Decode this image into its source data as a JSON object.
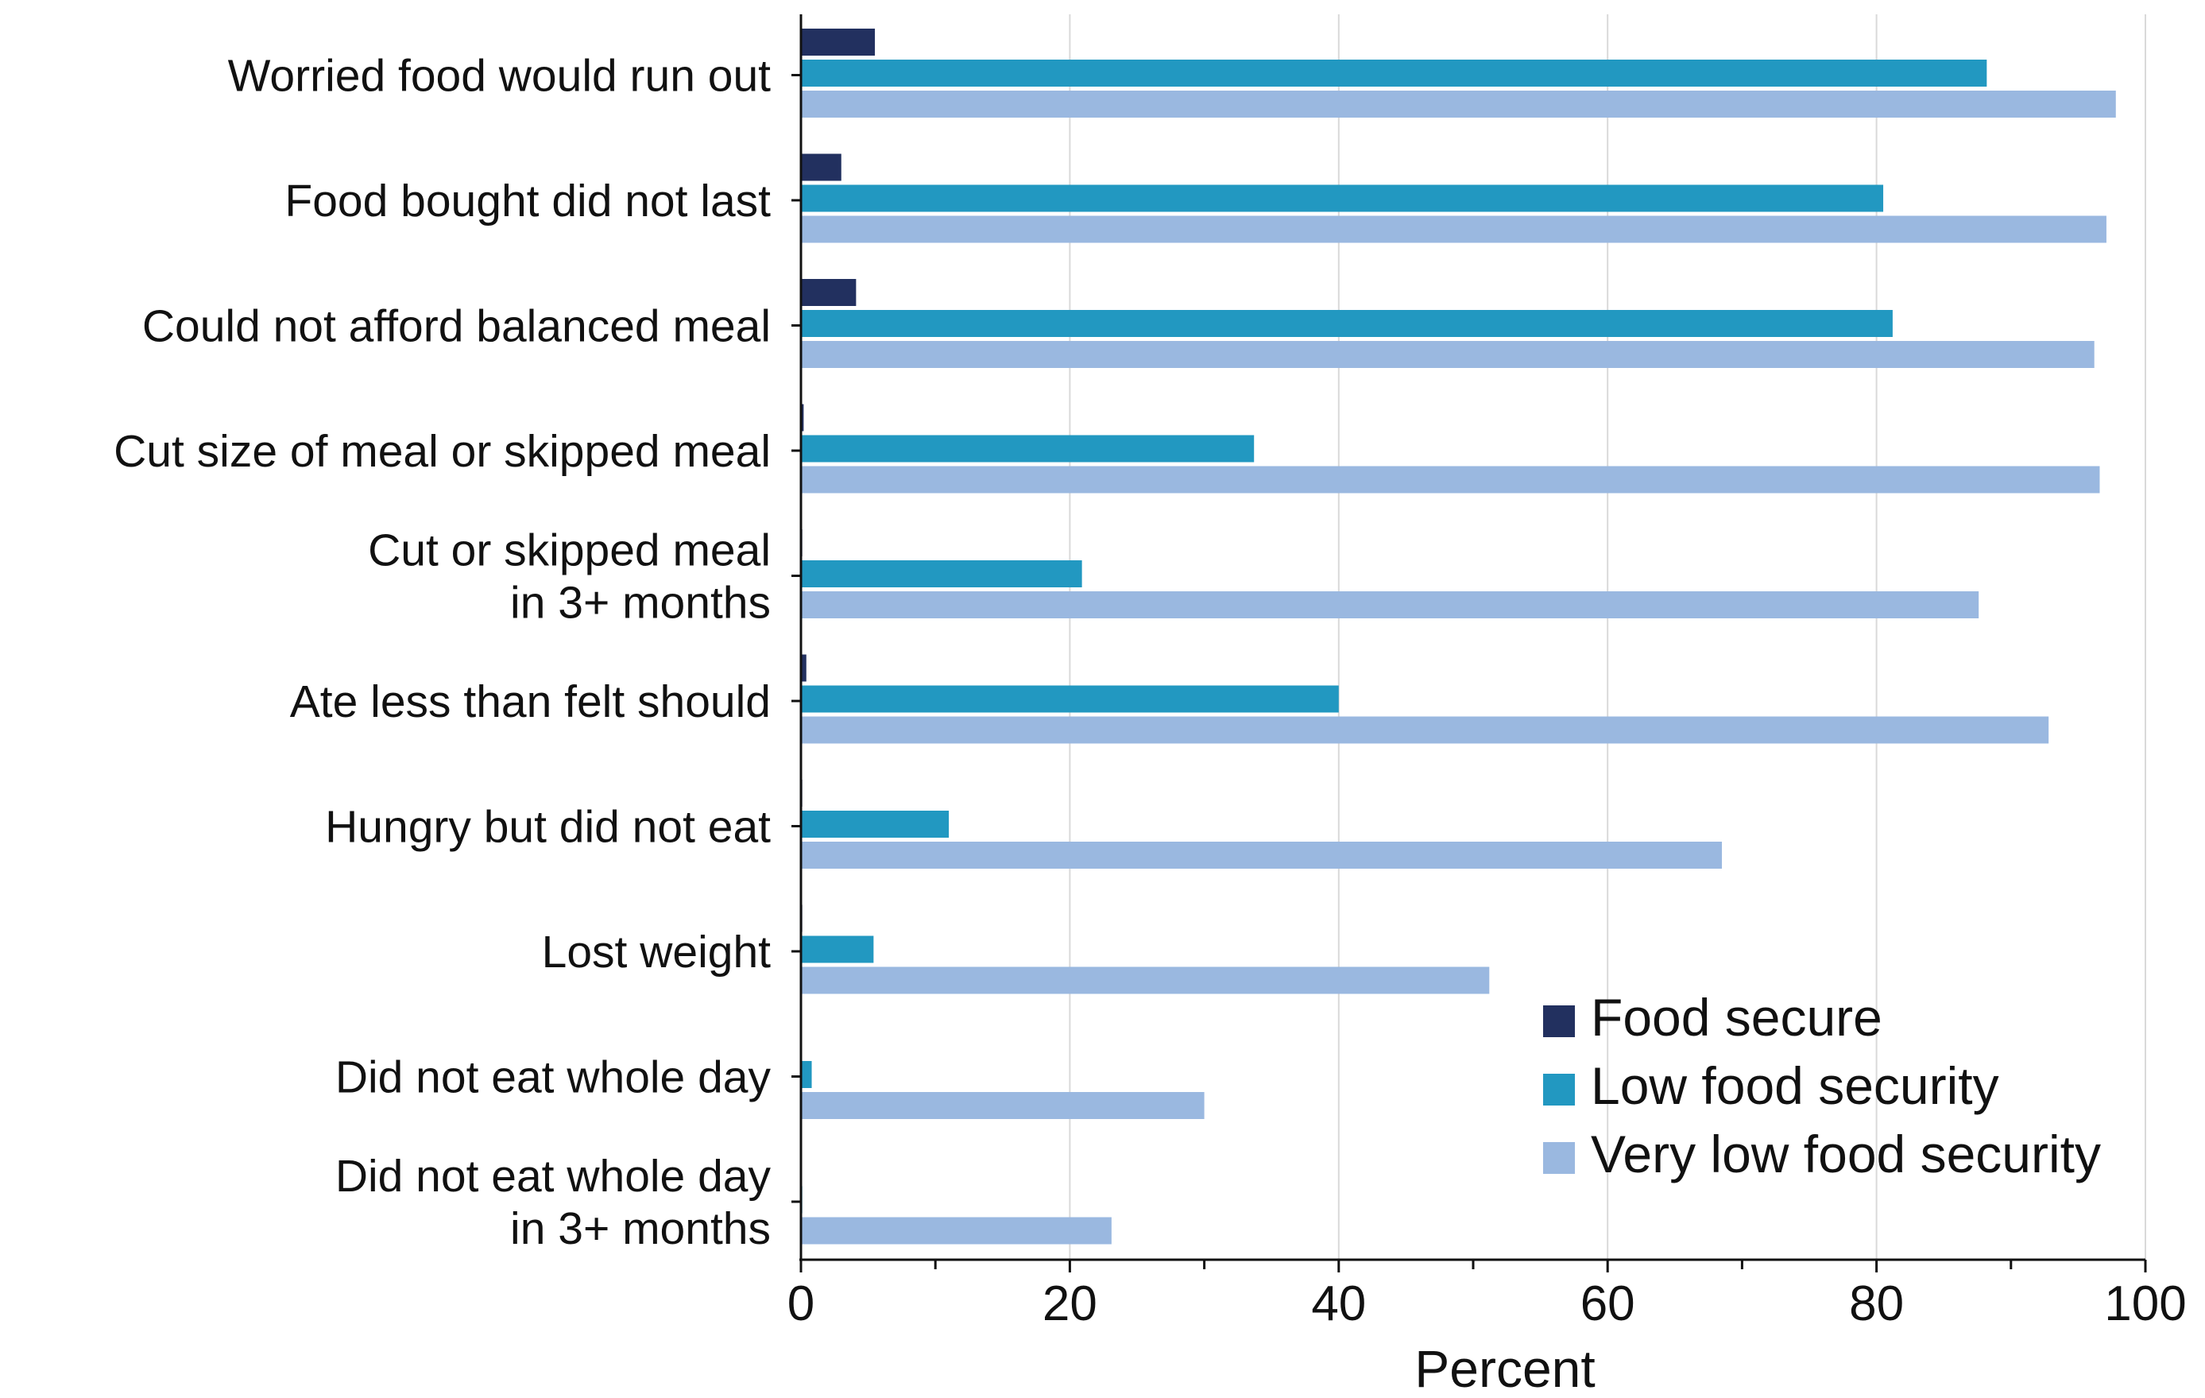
{
  "chart_data": {
    "type": "bar",
    "orientation": "horizontal",
    "categories": [
      [
        "Worried food would run out"
      ],
      [
        "Food bought did not last"
      ],
      [
        "Could not afford balanced meal"
      ],
      [
        "Cut size of meal or skipped meal"
      ],
      [
        "Cut or skipped meal",
        "in 3+ months"
      ],
      [
        "Ate less than felt should"
      ],
      [
        "Hungry but did not eat"
      ],
      [
        "Lost weight"
      ],
      [
        "Did not eat whole day"
      ],
      [
        "Did not eat whole day",
        "in 3+ months"
      ]
    ],
    "series": [
      {
        "name": "Food secure",
        "color": "#22305f",
        "values": [
          5.5,
          3.0,
          4.1,
          0.2,
          0.1,
          0.4,
          0.1,
          0.1,
          0.0,
          0.0
        ]
      },
      {
        "name": "Low food security",
        "color": "#2298c1",
        "values": [
          88.2,
          80.5,
          81.2,
          33.7,
          20.9,
          40.0,
          11.0,
          5.4,
          0.8,
          0.1
        ]
      },
      {
        "name": "Very low food security",
        "color": "#9ab8e0",
        "values": [
          97.8,
          97.1,
          96.2,
          96.6,
          87.6,
          92.8,
          68.5,
          51.2,
          30.0,
          23.1
        ]
      }
    ],
    "xlabel": "Percent",
    "ylabel": "",
    "xlim": [
      0,
      100
    ],
    "xticks": [
      0,
      20,
      40,
      60,
      80,
      100
    ],
    "grid": true,
    "legend_position": "bottom-right"
  }
}
